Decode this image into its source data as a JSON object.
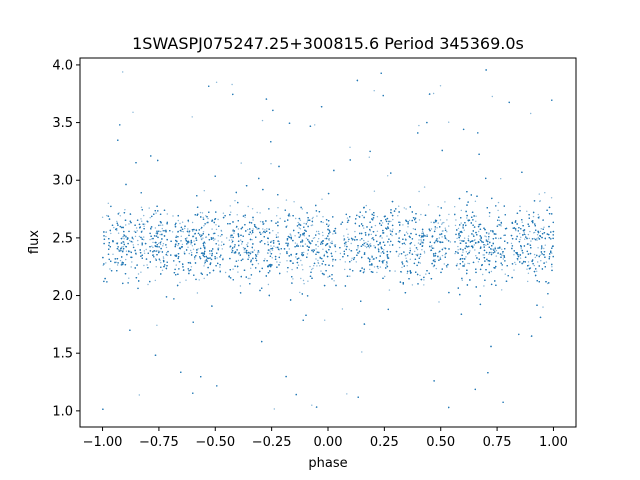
{
  "chart_data": {
    "type": "scatter",
    "title": "1SWASPJ075247.25+300815.6 Period 345369.0s",
    "xlabel": "phase",
    "ylabel": "flux",
    "xlim": [
      -1.1,
      1.1
    ],
    "ylim": [
      0.86,
      4.06
    ],
    "xticks": [
      -1.0,
      -0.75,
      -0.5,
      -0.25,
      0.0,
      0.25,
      0.5,
      0.75,
      1.0
    ],
    "xtick_labels": [
      "−1.00",
      "−0.75",
      "−0.50",
      "−0.25",
      "0.00",
      "0.25",
      "0.50",
      "0.75",
      "1.00"
    ],
    "yticks": [
      1.0,
      1.5,
      2.0,
      2.5,
      3.0,
      3.5,
      4.0
    ],
    "ytick_labels": [
      "1.0",
      "1.5",
      "2.0",
      "2.5",
      "3.0",
      "3.5",
      "4.0"
    ],
    "grid": false,
    "point_color": "#1f77b4",
    "x_range": [
      -1.0,
      1.0
    ],
    "band_median_flux": 2.45,
    "band_spread_flux": [
      1.85,
      3.0
    ],
    "outlier_flux_range": [
      1.0,
      4.0
    ],
    "gap_phases": [
      -0.95,
      -0.7,
      -0.45,
      -0.2,
      0.05,
      0.3,
      0.55,
      0.8
    ]
  }
}
